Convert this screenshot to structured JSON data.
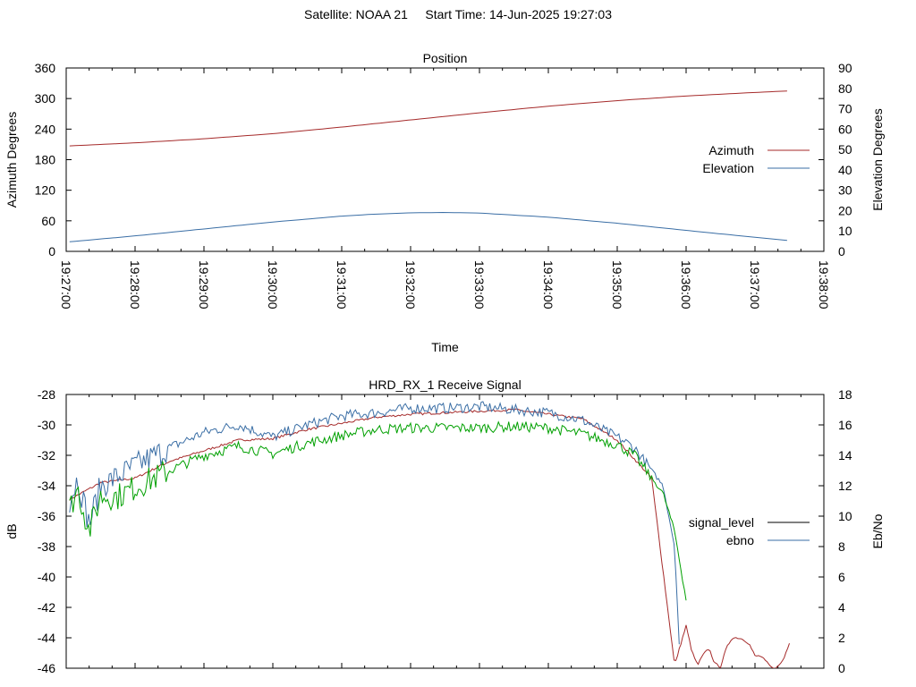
{
  "header": {
    "satellite_label": "Satellite: NOAA 21",
    "start_label": "Start Time: 14-Jun-2025 19:27:03"
  },
  "chart_data": [
    {
      "type": "line",
      "title": "Position",
      "xlabel": "Time",
      "ylabel": "Azimuth Degrees",
      "y2label": "Elevation Degrees",
      "xticks": [
        "19:27:00",
        "19:28:00",
        "19:29:00",
        "19:30:00",
        "19:31:00",
        "19:32:00",
        "19:33:00",
        "19:34:00",
        "19:35:00",
        "19:36:00",
        "19:37:00",
        "19:38:00"
      ],
      "xlim": [
        "19:27:00",
        "19:38:00"
      ],
      "ylim": [
        0,
        360
      ],
      "yticks": [
        0,
        60,
        120,
        180,
        240,
        300,
        360
      ],
      "y2lim": [
        0,
        90
      ],
      "y2ticks": [
        0,
        10,
        20,
        30,
        40,
        50,
        60,
        70,
        80,
        90
      ],
      "legend_placement": "right",
      "grid": false,
      "series": [
        {
          "name": "Azimuth",
          "axis": "y",
          "color": "#a52a2a",
          "x": [
            "19:27:03",
            "19:28:00",
            "19:29:00",
            "19:30:00",
            "19:31:00",
            "19:32:00",
            "19:33:00",
            "19:34:00",
            "19:35:00",
            "19:36:00",
            "19:37:00",
            "19:37:30"
          ],
          "y": [
            207,
            213,
            221,
            231,
            244,
            258,
            272,
            285,
            296,
            305,
            312,
            315
          ]
        },
        {
          "name": "Elevation",
          "axis": "y2",
          "color": "#3a6ea5",
          "x": [
            "19:27:03",
            "19:28:00",
            "19:29:00",
            "19:30:00",
            "19:31:00",
            "19:31:30",
            "19:32:00",
            "19:32:30",
            "19:33:00",
            "19:34:00",
            "19:35:00",
            "19:36:00",
            "19:37:00",
            "19:37:30"
          ],
          "y": [
            4.7,
            7.6,
            11.0,
            14.4,
            17.3,
            18.3,
            18.9,
            19.1,
            18.8,
            16.8,
            13.8,
            10.3,
            6.9,
            5.3
          ]
        }
      ]
    },
    {
      "type": "line",
      "title": "HRD_RX_1 Receive Signal",
      "xlabel": "",
      "ylabel": "dB",
      "y2label": "Eb/No",
      "xlim": [
        "19:27:00",
        "19:38:00"
      ],
      "ylim": [
        -46,
        -28
      ],
      "yticks": [
        -46,
        -44,
        -42,
        -40,
        -38,
        -36,
        -34,
        -32,
        -30,
        -28
      ],
      "y2lim": [
        0,
        18
      ],
      "y2ticks": [
        0,
        2,
        4,
        6,
        8,
        10,
        12,
        14,
        16,
        18
      ],
      "legend_placement": "right",
      "grid": false,
      "series": [
        {
          "name": "signal_level",
          "axis": "y",
          "color": "#a52a2a",
          "x": [
            "19:27:03",
            "19:27:30",
            "19:28:00",
            "19:28:30",
            "19:29:00",
            "19:29:30",
            "19:30:00",
            "19:30:30",
            "19:31:00",
            "19:31:30",
            "19:32:00",
            "19:32:30",
            "19:33:00",
            "19:33:30",
            "19:34:00",
            "19:34:30",
            "19:35:00",
            "19:35:30",
            "19:35:50",
            "19:36:00",
            "19:36:05",
            "19:36:10",
            "19:36:15",
            "19:36:20",
            "19:36:25",
            "19:36:30",
            "19:36:35",
            "19:36:40",
            "19:36:45",
            "19:36:50",
            "19:36:55",
            "19:37:00",
            "19:37:05",
            "19:37:10",
            "19:37:15",
            "19:37:20",
            "19:37:25",
            "19:37:30"
          ],
          "y": [
            -34.9,
            -33.8,
            -33.5,
            -32.4,
            -31.7,
            -31.0,
            -30.9,
            -30.3,
            -29.9,
            -29.5,
            -29.3,
            -29.2,
            -29.1,
            -29.0,
            -29.3,
            -29.6,
            -31.0,
            -33.5,
            -45.8,
            -43.2,
            -44.9,
            -45.8,
            -45.1,
            -44.7,
            -45.7,
            -45.9,
            -44.7,
            -44.0,
            -44.0,
            -44.1,
            -44.4,
            -45.2,
            -45.2,
            -45.6,
            -46.0,
            -45.9,
            -45.4,
            -44.3
          ]
        },
        {
          "name": "ebno",
          "axis": "y2",
          "color": "#3a6ea5",
          "x": [
            "19:27:03",
            "19:27:10",
            "19:27:20",
            "19:27:30",
            "19:27:45",
            "19:28:00",
            "19:28:30",
            "19:29:00",
            "19:29:30",
            "19:30:00",
            "19:30:30",
            "19:31:00",
            "19:31:30",
            "19:32:00",
            "19:32:30",
            "19:33:00",
            "19:33:30",
            "19:34:00",
            "19:34:30",
            "19:35:00",
            "19:35:15",
            "19:35:30",
            "19:35:40",
            "19:35:50",
            "19:35:55"
          ],
          "y": [
            11.0,
            12.5,
            9.5,
            12.0,
            12.6,
            13.3,
            14.5,
            15.5,
            16.0,
            15.2,
            16.0,
            16.6,
            16.8,
            17.1,
            17.1,
            17.2,
            17.0,
            16.8,
            16.3,
            15.2,
            14.5,
            13.0,
            12.0,
            8.0,
            0
          ]
        },
        {
          "name": "",
          "axis": "y2",
          "color": "#00a000",
          "x": [
            "19:27:03",
            "19:27:10",
            "19:27:20",
            "19:27:30",
            "19:27:45",
            "19:28:00",
            "19:28:30",
            "19:29:00",
            "19:29:30",
            "19:30:00",
            "19:30:30",
            "19:31:00",
            "19:31:30",
            "19:32:00",
            "19:32:30",
            "19:33:00",
            "19:33:30",
            "19:34:00",
            "19:34:30",
            "19:35:00",
            "19:35:15",
            "19:35:30",
            "19:35:40",
            "19:35:50",
            "19:36:00"
          ],
          "y": [
            10.5,
            11.8,
            9.0,
            11.3,
            11.3,
            11.9,
            13.0,
            14.0,
            14.6,
            14.1,
            14.8,
            15.3,
            15.7,
            15.8,
            15.8,
            15.8,
            15.9,
            15.8,
            15.4,
            14.7,
            14.0,
            12.5,
            11.5,
            9.0,
            4.5
          ]
        }
      ]
    }
  ]
}
